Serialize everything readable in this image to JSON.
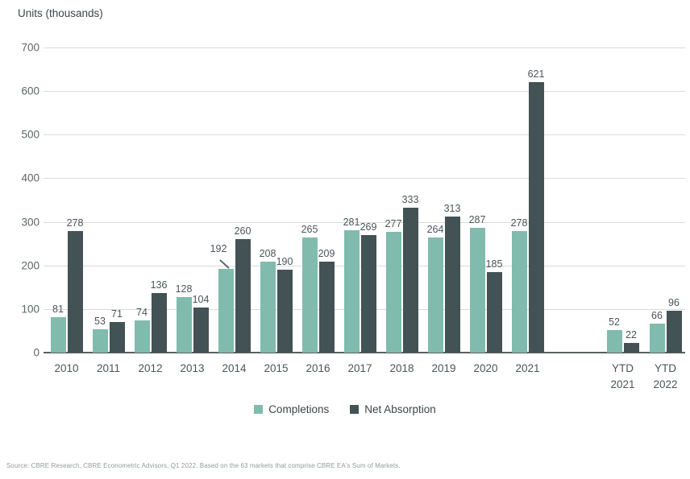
{
  "chart_data": {
    "type": "bar",
    "title": "Units (thousands)",
    "categories": [
      "2010",
      "2011",
      "2012",
      "2013",
      "2014",
      "2015",
      "2016",
      "2017",
      "2018",
      "2019",
      "2020",
      "2021",
      "YTD\n2021",
      "YTD\n2022"
    ],
    "series": [
      {
        "name": "Completions",
        "color": "#80BBAD",
        "values": [
          81,
          53,
          74,
          128,
          192,
          208,
          265,
          281,
          277,
          264,
          287,
          278,
          52,
          66
        ]
      },
      {
        "name": "Net Absorption",
        "color": "#435254",
        "values": [
          278,
          71,
          136,
          104,
          260,
          190,
          209,
          269,
          333,
          313,
          185,
          621,
          22,
          96
        ]
      }
    ],
    "ylim": [
      0,
      700
    ],
    "yticks": [
      0,
      100,
      200,
      300,
      400,
      500,
      600,
      700
    ],
    "grid": "horizontal",
    "legend_position": "bottom-center",
    "label_callouts": [
      {
        "series": 0,
        "index": 4
      }
    ]
  },
  "colors": {
    "completions": "#80BBAD",
    "net_absorption": "#435254",
    "gridline": "#d8dbdc",
    "axis_line": "#5b6163",
    "text": "#4c5558"
  },
  "source_note": "Source: CBRE Research, CBRE Econometric Advisors, Q1 2022. Based on the 63 markets that comprise CBRE EA's Sum of Markets."
}
